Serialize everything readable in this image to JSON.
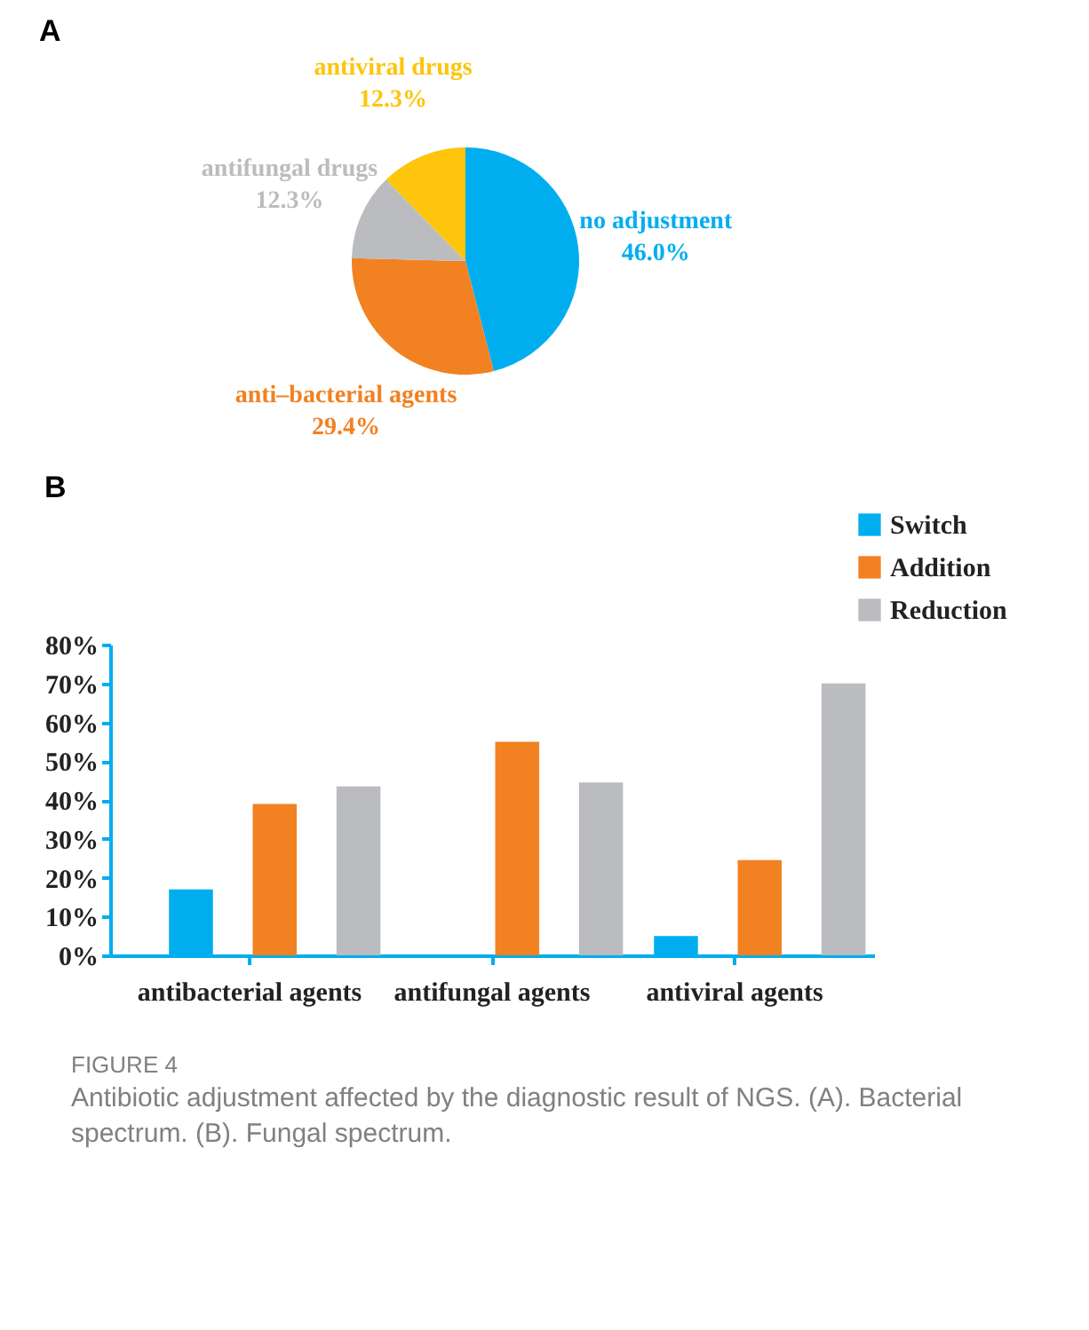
{
  "chart_data": [
    {
      "type": "pie",
      "title": "A",
      "categories": [
        "no adjustment",
        "anti–bacterial agents",
        "antifungal drugs",
        "antiviral drugs"
      ],
      "values": [
        46.0,
        29.4,
        12.3,
        12.3
      ],
      "value_labels": [
        "46.0%",
        "29.4%",
        "12.3%",
        "12.3%"
      ],
      "colors": [
        "#00aeef",
        "#f28121",
        "#bbbcbf",
        "#fdc50c"
      ]
    },
    {
      "type": "bar",
      "title": "B",
      "categories": [
        "antibacterial agents",
        "antifungal agents",
        "antiviral agents"
      ],
      "series": [
        {
          "name": "Switch",
          "color": "#00aeef",
          "values": [
            17,
            0,
            5
          ]
        },
        {
          "name": "Addition",
          "color": "#f28121",
          "values": [
            39,
            55,
            24.5
          ]
        },
        {
          "name": "Reduction",
          "color": "#bbbcbf",
          "values": [
            43.5,
            44.5,
            70
          ]
        }
      ],
      "ylim": [
        0,
        80
      ],
      "yticks": [
        {
          "value": 0,
          "label": "0%"
        },
        {
          "value": 10,
          "label": "10%"
        },
        {
          "value": 20,
          "label": "20%"
        },
        {
          "value": 30,
          "label": "30%"
        },
        {
          "value": 40,
          "label": "40%"
        },
        {
          "value": 50,
          "label": "50%"
        },
        {
          "value": 60,
          "label": "60%"
        },
        {
          "value": 70,
          "label": "70%"
        },
        {
          "value": 80,
          "label": "80%"
        }
      ],
      "grid": false,
      "legend": "top right",
      "annotations": [
        "FIGURE 4",
        "Antibiotic adjustment affected by the diagnostic result of NGS. (A). Bacterial spectrum. (B). Fungal spectrum."
      ]
    }
  ]
}
